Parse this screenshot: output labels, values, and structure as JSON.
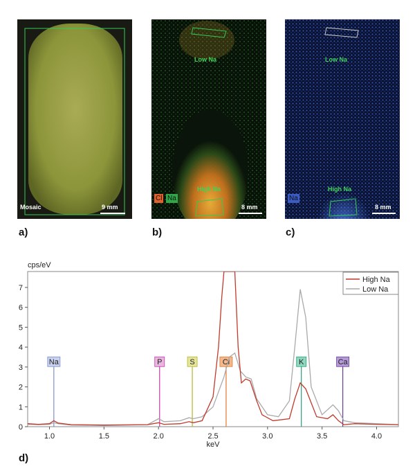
{
  "panels": [
    {
      "id": "a",
      "label": "a)",
      "name_text": "Mosaic",
      "scale": "9 mm",
      "bg": "#8f9a3c"
    },
    {
      "id": "b",
      "label": "b)",
      "scale": "8 mm",
      "low": "Low Na",
      "high": "High Na",
      "legend": [
        "Cl",
        "Na"
      ],
      "legend_colors": [
        "#e2612a",
        "#2fa84a"
      ]
    },
    {
      "id": "c",
      "label": "c)",
      "scale": "8 mm",
      "low": "Low Na",
      "high": "High Na",
      "legend": [
        "Na"
      ],
      "legend_colors": [
        "#3a5cc4"
      ]
    }
  ],
  "chart_label": "d)",
  "chart_data": {
    "type": "line",
    "ylabel": "cps/eV",
    "xlabel": "keV",
    "xlim": [
      0.8,
      4.2
    ],
    "ylim": [
      0,
      7.8
    ],
    "xticks": [
      1.0,
      1.5,
      2.0,
      2.5,
      3.0,
      3.5,
      4.0
    ],
    "xtick_labels": [
      "1.0",
      "1.5",
      "2.0",
      "2.5",
      "3.0",
      "3.5",
      "4.0"
    ],
    "yticks": [
      0,
      1,
      2,
      3,
      4,
      5,
      6,
      7
    ],
    "ytick_labels": [
      "0",
      "1",
      "2",
      "3",
      "4",
      "5",
      "6",
      "7"
    ],
    "legend_position": "top-right",
    "series": [
      {
        "name": "High Na",
        "color": "#c0392b",
        "x": [
          0.8,
          0.9,
          1.0,
          1.04,
          1.08,
          1.2,
          1.5,
          1.9,
          2.0,
          2.05,
          2.2,
          2.28,
          2.32,
          2.4,
          2.5,
          2.55,
          2.58,
          2.6,
          2.62,
          2.66,
          2.7,
          2.73,
          2.76,
          2.8,
          2.84,
          2.9,
          2.95,
          3.05,
          3.2,
          3.25,
          3.3,
          3.35,
          3.45,
          3.55,
          3.6,
          3.65,
          3.7,
          3.8,
          4.0,
          4.2
        ],
        "y": [
          0.15,
          0.12,
          0.15,
          0.3,
          0.18,
          0.1,
          0.08,
          0.1,
          0.2,
          0.12,
          0.15,
          0.25,
          0.2,
          0.3,
          1.5,
          4.0,
          6.5,
          7.8,
          7.8,
          7.8,
          7.8,
          4.0,
          2.2,
          2.4,
          2.3,
          1.3,
          0.6,
          0.3,
          0.4,
          1.4,
          2.2,
          1.9,
          0.5,
          0.4,
          0.6,
          0.3,
          0.1,
          0.15,
          0.12,
          0.1
        ]
      },
      {
        "name": "Low Na",
        "color": "#a9a9a9",
        "x": [
          0.8,
          0.9,
          1.0,
          1.04,
          1.08,
          1.2,
          1.5,
          1.9,
          2.0,
          2.05,
          2.2,
          2.28,
          2.32,
          2.4,
          2.5,
          2.6,
          2.65,
          2.7,
          2.75,
          2.8,
          2.85,
          2.9,
          3.0,
          3.1,
          3.2,
          3.25,
          3.3,
          3.35,
          3.4,
          3.5,
          3.6,
          3.65,
          3.7,
          3.8,
          4.0,
          4.2
        ],
        "y": [
          0.12,
          0.1,
          0.12,
          0.2,
          0.15,
          0.08,
          0.06,
          0.1,
          0.4,
          0.25,
          0.3,
          0.45,
          0.4,
          0.5,
          1.0,
          2.5,
          3.5,
          3.7,
          2.8,
          2.5,
          2.4,
          1.4,
          0.6,
          0.5,
          1.3,
          4.0,
          6.9,
          5.5,
          2.0,
          0.6,
          1.1,
          0.8,
          0.3,
          0.2,
          0.15,
          0.1
        ]
      }
    ],
    "markers": [
      {
        "label": "Na",
        "x": 1.04,
        "color": "#7b8fc9",
        "tag_bg": "#c8d2ee"
      },
      {
        "label": "P",
        "x": 2.01,
        "color": "#c83aa8",
        "tag_bg": "#e9b6df"
      },
      {
        "label": "S",
        "x": 2.31,
        "color": "#b5b52e",
        "tag_bg": "#e6e69a"
      },
      {
        "label": "Cl",
        "x": 2.62,
        "color": "#e07a2e",
        "tag_bg": "#f3b98c"
      },
      {
        "label": "K",
        "x": 3.31,
        "color": "#26a27a",
        "tag_bg": "#8fd8bf"
      },
      {
        "label": "Ca",
        "x": 3.69,
        "color": "#6a3d9a",
        "tag_bg": "#b49ad6"
      }
    ]
  }
}
